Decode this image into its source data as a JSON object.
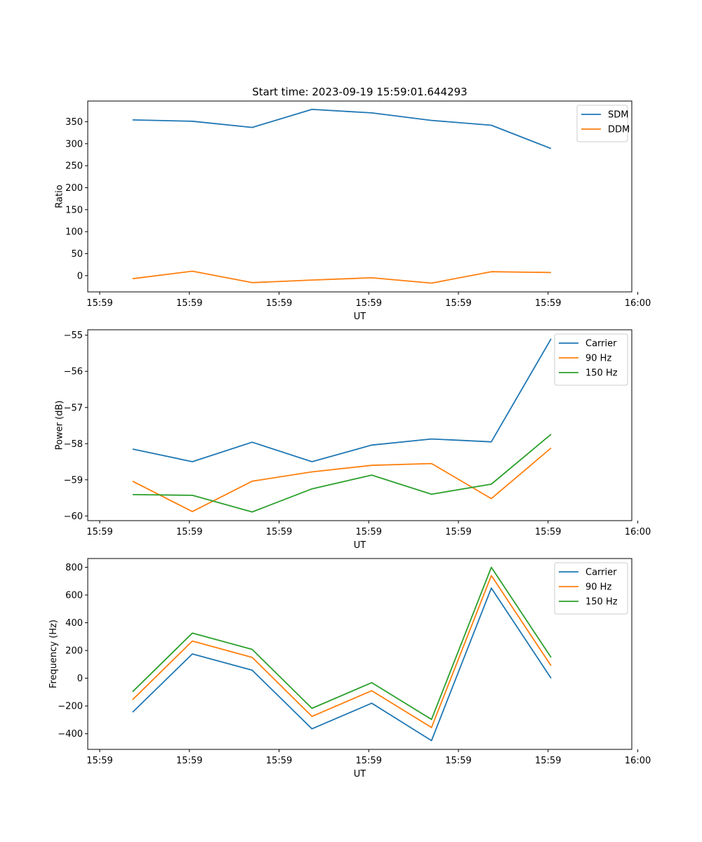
{
  "figure_title": "Start time: 2023-09-19 15:59:01.644293",
  "colors": {
    "c0": "#1f77b4",
    "c1": "#ff7f0e",
    "c2": "#2ca02c"
  },
  "chart_data": [
    {
      "type": "line",
      "title": "Start time: 2023-09-19 15:59:01.644293",
      "xlabel": "UT",
      "ylabel": "Ratio",
      "x": [
        1,
        2,
        3,
        4,
        5,
        6,
        7,
        8
      ],
      "xlim": [
        0.25,
        9.35
      ],
      "x_ticks": [
        0.45,
        1.95,
        3.45,
        4.95,
        6.45,
        7.95,
        9.45
      ],
      "x_tick_labels": [
        "15:59",
        "15:59",
        "15:59",
        "15:59",
        "15:59",
        "15:59",
        "16:00"
      ],
      "ylim": [
        -37,
        397
      ],
      "y_ticks": [
        0,
        50,
        100,
        150,
        200,
        250,
        300,
        350
      ],
      "y_tick_labels": [
        "0",
        "50",
        "100",
        "150",
        "200",
        "250",
        "300",
        "350"
      ],
      "legend_position": "top-right",
      "series": [
        {
          "name": "SDM",
          "color": "#1f77b4",
          "values": [
            354,
            351,
            337,
            378,
            370,
            353,
            342,
            289
          ]
        },
        {
          "name": "DDM",
          "color": "#ff7f0e",
          "values": [
            -7,
            10,
            -16,
            -10,
            -5,
            -17,
            9,
            7
          ]
        }
      ]
    },
    {
      "type": "line",
      "title": "",
      "xlabel": "UT",
      "ylabel": "Power (dB)",
      "x": [
        1,
        2,
        3,
        4,
        5,
        6,
        7,
        8
      ],
      "xlim": [
        0.25,
        9.35
      ],
      "x_ticks": [
        0.45,
        1.95,
        3.45,
        4.95,
        6.45,
        7.95,
        9.45
      ],
      "x_tick_labels": [
        "15:59",
        "15:59",
        "15:59",
        "15:59",
        "15:59",
        "15:59",
        "16:00"
      ],
      "ylim": [
        -60.13,
        -54.85
      ],
      "y_ticks": [
        -60,
        -59,
        -58,
        -57,
        -56,
        -55
      ],
      "y_tick_labels": [
        "−60",
        "−59",
        "−58",
        "−57",
        "−56",
        "−55"
      ],
      "legend_position": "top-right",
      "series": [
        {
          "name": "Carrier",
          "color": "#1f77b4",
          "values": [
            -58.15,
            -58.5,
            -57.96,
            -58.5,
            -58.04,
            -57.87,
            -57.95,
            -55.1
          ]
        },
        {
          "name": "90 Hz",
          "color": "#ff7f0e",
          "values": [
            -59.04,
            -59.88,
            -59.04,
            -58.78,
            -58.6,
            -58.55,
            -59.52,
            -58.12
          ]
        },
        {
          "name": "150 Hz",
          "color": "#2ca02c",
          "values": [
            -59.41,
            -59.43,
            -59.89,
            -59.25,
            -58.87,
            -59.4,
            -59.12,
            -57.74
          ]
        }
      ]
    },
    {
      "type": "line",
      "title": "",
      "xlabel": "UT",
      "ylabel": "Frequency (Hz)",
      "x": [
        1,
        2,
        3,
        4,
        5,
        6,
        7,
        8
      ],
      "xlim": [
        0.25,
        9.35
      ],
      "x_ticks": [
        0.45,
        1.95,
        3.45,
        4.95,
        6.45,
        7.95,
        9.45
      ],
      "x_tick_labels": [
        "15:59",
        "15:59",
        "15:59",
        "15:59",
        "15:59",
        "15:59",
        "16:00"
      ],
      "ylim": [
        -513,
        863
      ],
      "y_ticks": [
        -400,
        -200,
        0,
        200,
        400,
        600,
        800
      ],
      "y_tick_labels": [
        "−400",
        "−200",
        "0",
        "200",
        "400",
        "600",
        "800"
      ],
      "legend_position": "top-right",
      "series": [
        {
          "name": "Carrier",
          "color": "#1f77b4",
          "values": [
            -245,
            175,
            58,
            -365,
            -180,
            -450,
            650,
            0
          ]
        },
        {
          "name": "90 Hz",
          "color": "#ff7f0e",
          "values": [
            -155,
            268,
            150,
            -275,
            -90,
            -355,
            740,
            90
          ]
        },
        {
          "name": "150 Hz",
          "color": "#2ca02c",
          "values": [
            -97,
            325,
            208,
            -217,
            -32,
            -297,
            800,
            150
          ]
        }
      ]
    }
  ]
}
